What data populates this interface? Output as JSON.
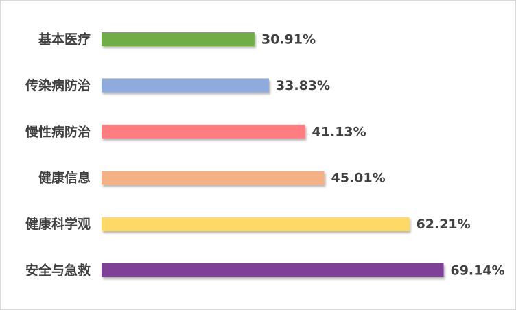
{
  "chart_data": {
    "type": "bar",
    "orientation": "horizontal",
    "categories": [
      "基本医疗",
      "传染病防治",
      "慢性病防治",
      "健康信息",
      "健康科学观",
      "安全与急救"
    ],
    "values": [
      30.91,
      33.83,
      41.13,
      45.01,
      62.21,
      69.14
    ],
    "value_labels": [
      "30.91%",
      "33.83%",
      "41.13%",
      "45.01%",
      "62.21%",
      "69.14%"
    ],
    "colors": [
      "#70ad47",
      "#8faadc",
      "#ff7c80",
      "#f4b183",
      "#ffd966",
      "#7f3f98"
    ],
    "xlim": [
      0,
      100
    ],
    "grid": false
  }
}
